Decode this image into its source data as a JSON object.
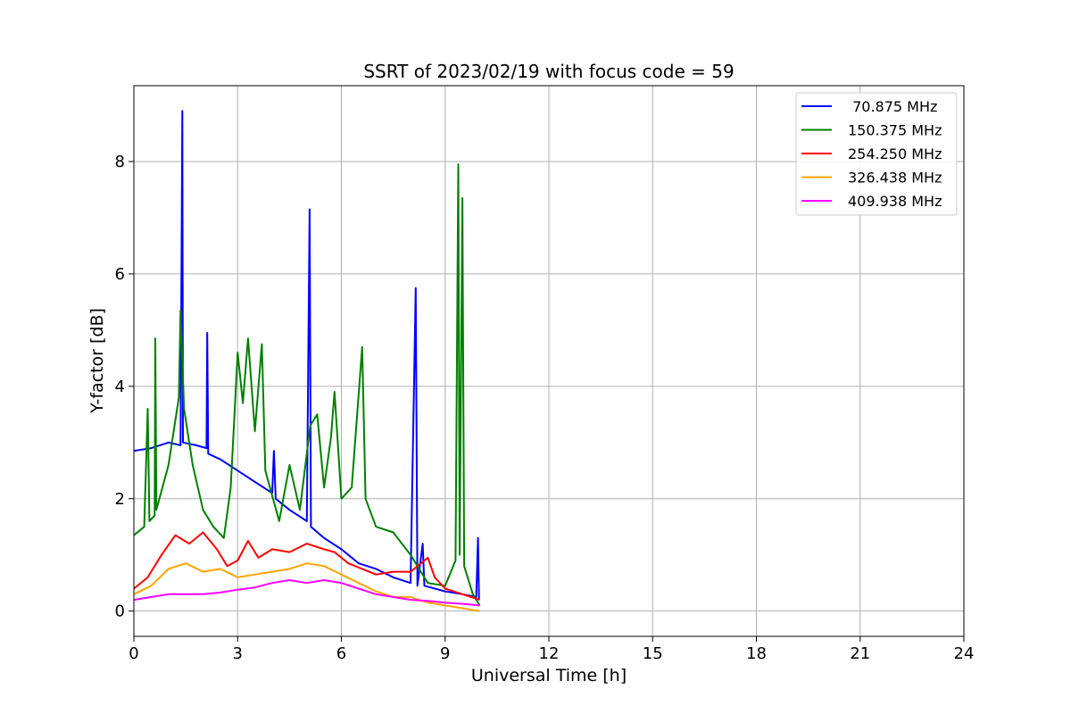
{
  "chart_data": {
    "type": "line",
    "title": "SSRT of 2023/02/19 with focus code = 59",
    "xlabel": "Universal Time [h]",
    "ylabel": "Y-factor [dB]",
    "xlim": [
      0,
      24
    ],
    "ylim": [
      -0.45,
      9.35
    ],
    "grid": true,
    "legend_position": "top-right",
    "x_ticks": [
      0,
      3,
      6,
      9,
      12,
      15,
      18,
      21,
      24
    ],
    "y_ticks": [
      0,
      2,
      4,
      6,
      8
    ],
    "series": [
      {
        "name": " 70.875 MHz",
        "color": "#0000ff",
        "points": [
          [
            0,
            2.85
          ],
          [
            0.5,
            2.9
          ],
          [
            1,
            3.0
          ],
          [
            1.35,
            2.95
          ],
          [
            1.4,
            8.9
          ],
          [
            1.42,
            3.0
          ],
          [
            1.8,
            2.95
          ],
          [
            2.1,
            2.9
          ],
          [
            2.12,
            4.95
          ],
          [
            2.15,
            2.8
          ],
          [
            2.5,
            2.7
          ],
          [
            3,
            2.5
          ],
          [
            3.5,
            2.3
          ],
          [
            4,
            2.1
          ],
          [
            4.05,
            2.85
          ],
          [
            4.1,
            2.0
          ],
          [
            4.5,
            1.8
          ],
          [
            5,
            1.6
          ],
          [
            5.08,
            7.15
          ],
          [
            5.12,
            1.5
          ],
          [
            5.5,
            1.3
          ],
          [
            6,
            1.1
          ],
          [
            6.5,
            0.85
          ],
          [
            7,
            0.75
          ],
          [
            7.5,
            0.6
          ],
          [
            8,
            0.5
          ],
          [
            8.15,
            5.75
          ],
          [
            8.2,
            0.45
          ],
          [
            8.35,
            1.2
          ],
          [
            8.4,
            0.45
          ],
          [
            9,
            0.35
          ],
          [
            9.5,
            0.3
          ],
          [
            9.9,
            0.25
          ],
          [
            9.95,
            1.3
          ],
          [
            9.98,
            0.2
          ]
        ]
      },
      {
        "name": "150.375 MHz",
        "color": "#008000",
        "points": [
          [
            0,
            1.35
          ],
          [
            0.3,
            1.5
          ],
          [
            0.4,
            3.6
          ],
          [
            0.45,
            1.6
          ],
          [
            0.6,
            1.7
          ],
          [
            0.62,
            4.85
          ],
          [
            0.65,
            1.8
          ],
          [
            1,
            2.6
          ],
          [
            1.3,
            3.8
          ],
          [
            1.35,
            5.35
          ],
          [
            1.45,
            3.6
          ],
          [
            1.7,
            2.6
          ],
          [
            2,
            1.8
          ],
          [
            2.3,
            1.5
          ],
          [
            2.6,
            1.3
          ],
          [
            2.8,
            2.2
          ],
          [
            3,
            4.6
          ],
          [
            3.15,
            3.7
          ],
          [
            3.3,
            4.85
          ],
          [
            3.5,
            3.2
          ],
          [
            3.7,
            4.75
          ],
          [
            3.8,
            2.5
          ],
          [
            4.2,
            1.6
          ],
          [
            4.5,
            2.6
          ],
          [
            4.8,
            1.8
          ],
          [
            5.1,
            3.3
          ],
          [
            5.3,
            3.5
          ],
          [
            5.5,
            2.2
          ],
          [
            5.7,
            3.1
          ],
          [
            5.8,
            3.9
          ],
          [
            6,
            2.0
          ],
          [
            6.3,
            2.2
          ],
          [
            6.6,
            4.7
          ],
          [
            6.7,
            2.0
          ],
          [
            7,
            1.5
          ],
          [
            7.5,
            1.4
          ],
          [
            8,
            1.0
          ],
          [
            8.5,
            0.5
          ],
          [
            9,
            0.45
          ],
          [
            9.3,
            0.9
          ],
          [
            9.38,
            7.95
          ],
          [
            9.42,
            1.0
          ],
          [
            9.5,
            7.35
          ],
          [
            9.55,
            0.8
          ],
          [
            9.8,
            0.3
          ],
          [
            10,
            0.1
          ]
        ]
      },
      {
        "name": "254.250 MHz",
        "color": "#ff0000",
        "points": [
          [
            0,
            0.4
          ],
          [
            0.4,
            0.6
          ],
          [
            0.8,
            1.0
          ],
          [
            1.2,
            1.35
          ],
          [
            1.6,
            1.2
          ],
          [
            2,
            1.4
          ],
          [
            2.4,
            1.1
          ],
          [
            2.7,
            0.8
          ],
          [
            3,
            0.9
          ],
          [
            3.3,
            1.25
          ],
          [
            3.6,
            0.95
          ],
          [
            4,
            1.1
          ],
          [
            4.5,
            1.05
          ],
          [
            5,
            1.2
          ],
          [
            5.5,
            1.1
          ],
          [
            5.8,
            1.05
          ],
          [
            6.2,
            0.85
          ],
          [
            6.6,
            0.75
          ],
          [
            7,
            0.65
          ],
          [
            7.5,
            0.7
          ],
          [
            8,
            0.7
          ],
          [
            8.5,
            0.95
          ],
          [
            8.7,
            0.6
          ],
          [
            9,
            0.4
          ],
          [
            9.5,
            0.3
          ],
          [
            10,
            0.2
          ]
        ]
      },
      {
        "name": "326.438 MHz",
        "color": "#ffa500",
        "points": [
          [
            0,
            0.3
          ],
          [
            0.5,
            0.45
          ],
          [
            1,
            0.75
          ],
          [
            1.5,
            0.85
          ],
          [
            2,
            0.7
          ],
          [
            2.5,
            0.75
          ],
          [
            3,
            0.6
          ],
          [
            3.5,
            0.65
          ],
          [
            4,
            0.7
          ],
          [
            4.5,
            0.75
          ],
          [
            5,
            0.85
          ],
          [
            5.5,
            0.8
          ],
          [
            6,
            0.65
          ],
          [
            6.5,
            0.5
          ],
          [
            7,
            0.35
          ],
          [
            7.5,
            0.25
          ],
          [
            8,
            0.25
          ],
          [
            8.5,
            0.15
          ],
          [
            9,
            0.1
          ],
          [
            9.5,
            0.05
          ],
          [
            10,
            0.0
          ]
        ]
      },
      {
        "name": "409.938 MHz",
        "color": "#ff00ff",
        "points": [
          [
            0,
            0.2
          ],
          [
            0.5,
            0.25
          ],
          [
            1,
            0.3
          ],
          [
            1.5,
            0.3
          ],
          [
            2,
            0.3
          ],
          [
            2.5,
            0.33
          ],
          [
            3,
            0.38
          ],
          [
            3.5,
            0.42
          ],
          [
            4,
            0.5
          ],
          [
            4.5,
            0.55
          ],
          [
            5,
            0.5
          ],
          [
            5.5,
            0.55
          ],
          [
            6,
            0.5
          ],
          [
            6.5,
            0.4
          ],
          [
            7,
            0.3
          ],
          [
            7.5,
            0.25
          ],
          [
            8,
            0.2
          ],
          [
            8.5,
            0.18
          ],
          [
            9,
            0.15
          ],
          [
            9.5,
            0.13
          ],
          [
            10,
            0.1
          ]
        ]
      }
    ]
  }
}
